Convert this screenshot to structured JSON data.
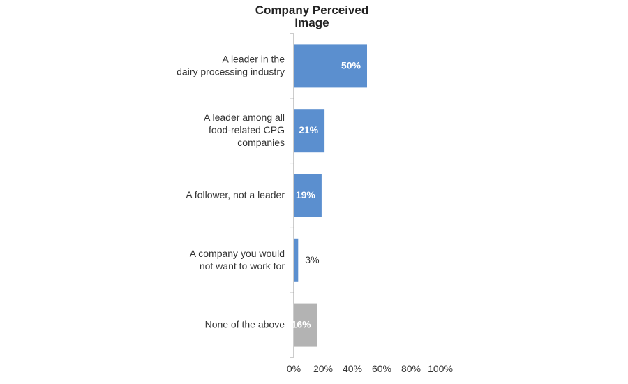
{
  "chart_data": {
    "type": "barh",
    "title": "Company Perceived\nImage",
    "categories": [
      "A leader in the\ndairy processing industry",
      "A leader among all\nfood-related CPG\ncompanies",
      "A follower, not a leader",
      "A company you would\nnot want to work for",
      "None of the above"
    ],
    "values": [
      50,
      21,
      19,
      3,
      16
    ],
    "value_labels": [
      "50%",
      "21%",
      "19%",
      "3%",
      "16%"
    ],
    "colors": [
      "#5b8fcf",
      "#5b8fcf",
      "#5b8fcf",
      "#5b8fcf",
      "#b3b3b3"
    ],
    "xlim": [
      0,
      100
    ],
    "xticks": [
      {
        "value": 0,
        "label": "0%"
      },
      {
        "value": 20,
        "label": "20%"
      },
      {
        "value": 40,
        "label": "40%"
      },
      {
        "value": 60,
        "label": "60%"
      },
      {
        "value": 80,
        "label": "80%"
      },
      {
        "value": 100,
        "label": "100%"
      }
    ]
  }
}
